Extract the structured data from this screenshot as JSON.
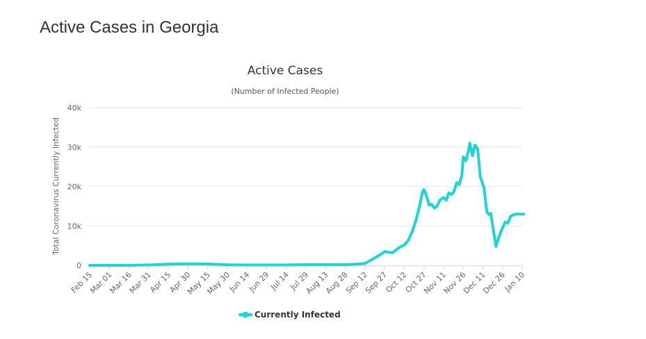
{
  "page": {
    "heading": "Active Cases in Georgia"
  },
  "chart_data": {
    "type": "line",
    "title": "Active Cases",
    "subtitle": "(Number of Infected People)",
    "xlabel": "",
    "ylabel": "Total Coronavirus Currently Infected",
    "ylim": [
      0,
      40000
    ],
    "yticks": [
      0,
      10000,
      20000,
      30000,
      40000
    ],
    "ytick_labels": [
      "0",
      "10k",
      "20k",
      "30k",
      "40k"
    ],
    "xticks": [
      "Feb 15",
      "Mar 01",
      "Mar 16",
      "Mar 31",
      "Apr 15",
      "Apr 30",
      "May 15",
      "May 30",
      "Jun 14",
      "Jun 29",
      "Jul 14",
      "Jul 29",
      "Aug 13",
      "Aug 28",
      "Sep 12",
      "Sep 27",
      "Oct 12",
      "Oct 27",
      "Nov 11",
      "Nov 26",
      "Dec 11",
      "Dec 26",
      "Jan 10"
    ],
    "grid": true,
    "legend_position": "bottom-center",
    "series": [
      {
        "name": "Currently Infected",
        "color": "#1ad6d6",
        "x": [
          "Feb 15",
          "Mar 01",
          "Mar 16",
          "Mar 31",
          "Apr 15",
          "Apr 30",
          "May 15",
          "May 30",
          "Jun 14",
          "Jun 29",
          "Jul 14",
          "Jul 29",
          "Aug 13",
          "Aug 28",
          "Sep 06",
          "Sep 12",
          "Sep 20",
          "Sep 25",
          "Sep 27",
          "Oct 03",
          "Oct 08",
          "Oct 12",
          "Oct 15",
          "Oct 18",
          "Oct 21",
          "Oct 24",
          "Oct 26",
          "Oct 27",
          "Oct 28",
          "Oct 31",
          "Nov 02",
          "Nov 04",
          "Nov 06",
          "Nov 08",
          "Nov 11",
          "Nov 13",
          "Nov 15",
          "Nov 17",
          "Nov 19",
          "Nov 21",
          "Nov 23",
          "Nov 25",
          "Nov 26",
          "Nov 28",
          "Nov 30",
          "Dec 01",
          "Dec 03",
          "Dec 05",
          "Dec 07",
          "Dec 09",
          "Dec 11",
          "Dec 12",
          "Dec 14",
          "Dec 16",
          "Dec 17",
          "Dec 19",
          "Dec 21",
          "Dec 23",
          "Dec 25",
          "Dec 26",
          "Dec 28",
          "Dec 30",
          "Jan 01",
          "Jan 03",
          "Jan 05",
          "Jan 07",
          "Jan 08",
          "Jan 09",
          "Jan 10",
          "Jan 11"
        ],
        "values": [
          0,
          0,
          0,
          100,
          300,
          400,
          350,
          150,
          100,
          100,
          100,
          200,
          200,
          200,
          300,
          500,
          2000,
          3000,
          3500,
          3200,
          4500,
          5200,
          6300,
          8500,
          11500,
          15500,
          18800,
          19200,
          18600,
          15300,
          15500,
          14500,
          15000,
          16500,
          17200,
          16500,
          18400,
          18000,
          18800,
          21000,
          20500,
          23000,
          27500,
          26500,
          29000,
          31000,
          27800,
          30500,
          29500,
          22500,
          20500,
          19500,
          13500,
          12800,
          13200,
          9000,
          4800,
          7000,
          8800,
          9500,
          11000,
          10700,
          12400,
          12800,
          13000,
          13000,
          13000,
          13000,
          13000,
          13000
        ]
      }
    ]
  }
}
